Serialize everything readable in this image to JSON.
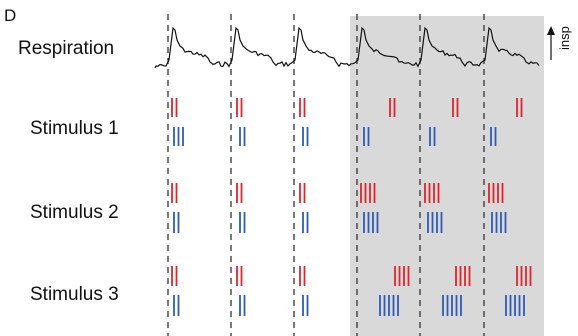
{
  "panel_letter": "D",
  "rows": {
    "respiration": "Respiration",
    "stimulus_1": "Stimulus 1",
    "stimulus_2": "Stimulus 2",
    "stimulus_3": "Stimulus 3"
  },
  "insp_label": "insp",
  "colors": {
    "red": "#e0242b",
    "blue": "#2f5bb4",
    "shade": "#d9d9d9",
    "trace": "#111111"
  },
  "cycles": 6,
  "shaded_cycles": [
    4,
    5,
    6
  ],
  "spikes_per_cycle": {
    "stimulus_1": {
      "red": [
        2,
        2,
        2,
        2,
        2,
        2
      ],
      "blue": [
        3,
        2,
        2,
        2,
        2,
        2
      ]
    },
    "stimulus_2": {
      "red": [
        2,
        2,
        2,
        4,
        4,
        4
      ],
      "blue": [
        2,
        2,
        2,
        4,
        4,
        4
      ]
    },
    "stimulus_3": {
      "red": [
        2,
        2,
        2,
        4,
        4,
        4
      ],
      "blue": [
        2,
        2,
        2,
        5,
        5,
        5
      ]
    }
  }
}
